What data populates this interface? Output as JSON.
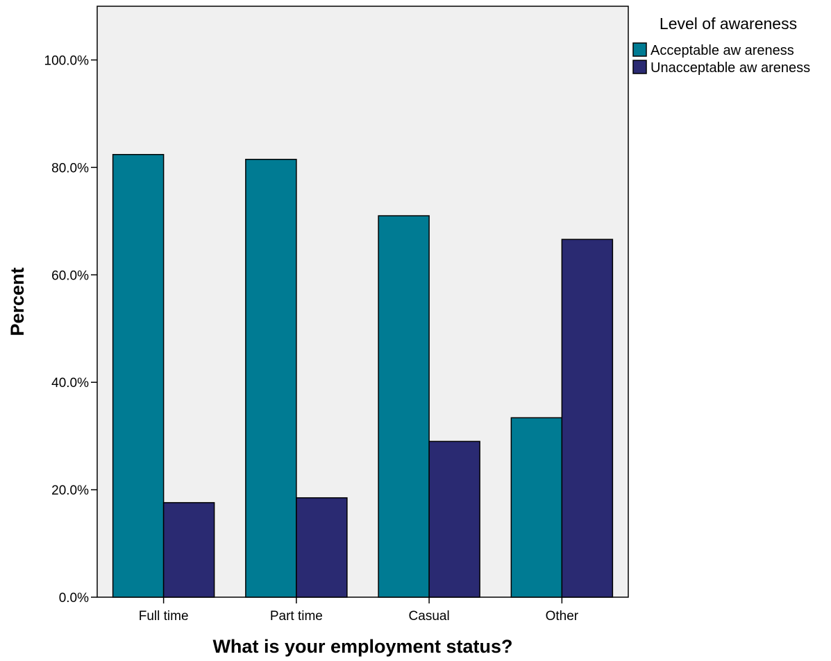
{
  "chart_data": {
    "type": "bar",
    "categories": [
      "Full time",
      "Part time",
      "Casual",
      "Other"
    ],
    "series": [
      {
        "name": "Acceptable aw areness",
        "values": [
          82.4,
          81.5,
          71.0,
          33.4
        ],
        "color": "#007B93"
      },
      {
        "name": "Unacceptable aw areness",
        "values": [
          17.6,
          18.5,
          29.0,
          66.6
        ],
        "color": "#2A2A72"
      }
    ],
    "xlabel": "What is your employment status?",
    "ylabel": "Percent",
    "ylim": [
      0,
      110
    ],
    "yticks": [
      0,
      20,
      40,
      60,
      80,
      100
    ],
    "ytick_labels": [
      "0.0%",
      "20.0%",
      "40.0%",
      "60.0%",
      "80.0%",
      "100.0%"
    ],
    "legend": {
      "title": "Level of awareness",
      "position": "top-right"
    },
    "grid": false,
    "plot_background": "#F0F0F0"
  }
}
